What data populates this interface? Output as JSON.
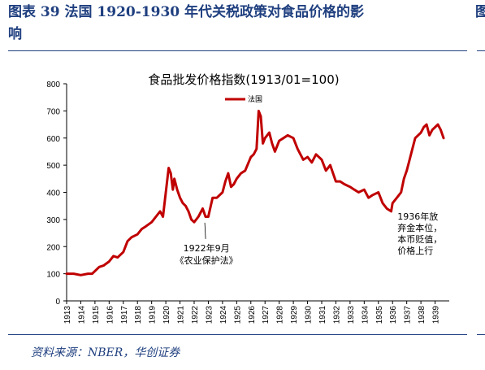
{
  "figure": {
    "title_line1": "图表 39   法国 1920-1930 年代关税政策对食品价格的影",
    "title_line2": "响",
    "source": "资料来源：NBER，华创证券",
    "right_edge_text": "图"
  },
  "chart_data": {
    "type": "line",
    "title": "食品批发价格指数(1913/01=100)",
    "legend": {
      "placement": "top-center",
      "entries": [
        "法国"
      ]
    },
    "xlabel": "",
    "ylabel": "",
    "xlim": [
      1913,
      1940
    ],
    "ylim": [
      0,
      800
    ],
    "yticks": [
      0,
      100,
      200,
      300,
      400,
      500,
      600,
      700,
      800
    ],
    "xticks": [
      "1913",
      "1914",
      "1915",
      "1916",
      "1917",
      "1918",
      "1919",
      "1920",
      "1921",
      "1922",
      "1923",
      "1924",
      "1925",
      "1926",
      "1927",
      "1928",
      "1929",
      "1930",
      "1931",
      "1932",
      "1933",
      "1934",
      "1935",
      "1936",
      "1937",
      "1938",
      "1939"
    ],
    "grid": false,
    "series": [
      {
        "name": "法国",
        "color": "#c00000",
        "x": [
          1913.0,
          1913.5,
          1914.0,
          1914.5,
          1914.8,
          1915.0,
          1915.3,
          1915.6,
          1916.0,
          1916.3,
          1916.6,
          1917.0,
          1917.3,
          1917.6,
          1918.0,
          1918.3,
          1918.6,
          1919.0,
          1919.3,
          1919.6,
          1919.8,
          1920.0,
          1920.2,
          1920.35,
          1920.5,
          1920.6,
          1920.8,
          1921.0,
          1921.2,
          1921.4,
          1921.6,
          1921.8,
          1922.0,
          1922.3,
          1922.6,
          1922.8,
          1923.0,
          1923.3,
          1923.6,
          1924.0,
          1924.2,
          1924.4,
          1924.6,
          1924.8,
          1925.0,
          1925.3,
          1925.6,
          1926.0,
          1926.2,
          1926.4,
          1926.55,
          1926.7,
          1926.85,
          1927.0,
          1927.3,
          1927.5,
          1927.7,
          1928.0,
          1928.3,
          1928.6,
          1929.0,
          1929.3,
          1929.5,
          1929.7,
          1930.0,
          1930.3,
          1930.6,
          1931.0,
          1931.3,
          1931.6,
          1932.0,
          1932.3,
          1932.6,
          1933.0,
          1933.3,
          1933.6,
          1934.0,
          1934.3,
          1934.6,
          1935.0,
          1935.3,
          1935.6,
          1935.9,
          1936.0,
          1936.3,
          1936.6,
          1936.8,
          1937.0,
          1937.2,
          1937.4,
          1937.6,
          1937.8,
          1938.0,
          1938.2,
          1938.4,
          1938.6,
          1938.8,
          1939.0,
          1939.2,
          1939.4,
          1939.6
        ],
        "y": [
          100,
          100,
          95,
          100,
          100,
          110,
          125,
          130,
          145,
          165,
          160,
          180,
          220,
          235,
          245,
          265,
          275,
          290,
          310,
          330,
          310,
          400,
          490,
          470,
          410,
          450,
          410,
          380,
          360,
          350,
          330,
          300,
          290,
          310,
          340,
          310,
          310,
          380,
          380,
          400,
          440,
          470,
          420,
          430,
          450,
          470,
          480,
          530,
          540,
          560,
          700,
          680,
          580,
          600,
          620,
          580,
          550,
          590,
          600,
          610,
          600,
          560,
          540,
          520,
          530,
          510,
          540,
          520,
          480,
          500,
          440,
          440,
          430,
          420,
          410,
          400,
          410,
          380,
          390,
          400,
          360,
          340,
          330,
          360,
          380,
          400,
          450,
          480,
          520,
          560,
          600,
          610,
          620,
          640,
          650,
          610,
          630,
          640,
          650,
          630,
          600
        ]
      }
    ],
    "annotations": [
      {
        "lines": [
          "1922年9月",
          "《农业保护法》"
        ],
        "x": 1922.75,
        "y": 300
      },
      {
        "lines": [
          "1936年放",
          "弃金本位，",
          "本币贬值，",
          "价格上行"
        ],
        "x": 1936.0,
        "y": 330
      }
    ]
  }
}
